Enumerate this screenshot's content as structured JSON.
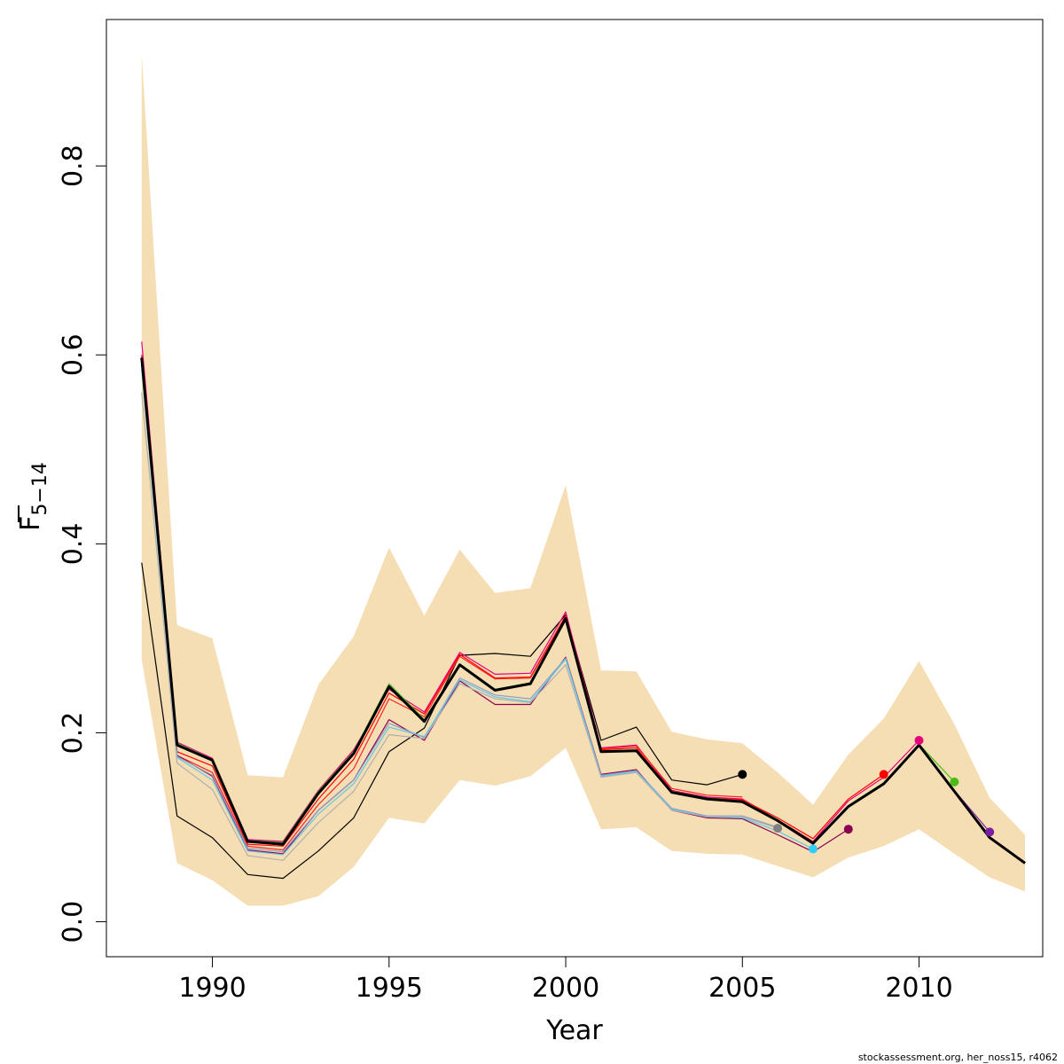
{
  "chart_data": {
    "type": "line",
    "xlabel": "Year",
    "ylabel_main": "F",
    "ylabel_sub": "5−14",
    "xlim": [
      1987,
      2013.5
    ],
    "ylim": [
      -0.037,
      0.955
    ],
    "xticks": [
      1990,
      1995,
      2000,
      2005,
      2010
    ],
    "yticks": [
      0.0,
      0.2,
      0.4,
      0.6,
      0.8
    ],
    "xtick_labels": [
      "1990",
      "1995",
      "2000",
      "2005",
      "2010"
    ],
    "ytick_labels": [
      "0.0",
      "0.2",
      "0.4",
      "0.6",
      "0.8"
    ],
    "band_color": "#f5deb3",
    "band": {
      "x": [
        1988,
        1989,
        1990,
        1991,
        1992,
        1993,
        1994,
        1995,
        1996,
        1997,
        1998,
        1999,
        2000,
        2001,
        2002,
        2003,
        2004,
        2005,
        2006,
        2007,
        2008,
        2009,
        2010,
        2011,
        2012,
        2013
      ],
      "upper": [
        0.918,
        0.314,
        0.3,
        0.155,
        0.153,
        0.251,
        0.302,
        0.396,
        0.324,
        0.394,
        0.348,
        0.353,
        0.462,
        0.266,
        0.265,
        0.201,
        0.193,
        0.189,
        0.158,
        0.124,
        0.177,
        0.215,
        0.276,
        0.209,
        0.131,
        0.092
      ],
      "lower": [
        0.277,
        0.062,
        0.044,
        0.017,
        0.017,
        0.027,
        0.058,
        0.11,
        0.104,
        0.15,
        0.144,
        0.154,
        0.184,
        0.098,
        0.1,
        0.075,
        0.072,
        0.071,
        0.059,
        0.047,
        0.068,
        0.08,
        0.098,
        0.072,
        0.047,
        0.032
      ]
    },
    "series": [
      {
        "color": "#000000",
        "width": 3,
        "x": [
          1988,
          1989,
          1990,
          1991,
          1992,
          1993,
          1994,
          1995,
          1996,
          1997,
          1998,
          1999,
          2000,
          2001,
          2002,
          2003,
          2004,
          2005,
          2006,
          2007,
          2008,
          2009,
          2010,
          2011,
          2012,
          2013
        ],
        "values": [
          0.597,
          0.187,
          0.171,
          0.085,
          0.082,
          0.136,
          0.178,
          0.249,
          0.212,
          0.272,
          0.245,
          0.252,
          0.321,
          0.18,
          0.181,
          0.137,
          0.13,
          0.127,
          0.107,
          0.083,
          0.122,
          0.146,
          0.187,
          0.138,
          0.089,
          0.062
        ]
      },
      {
        "color": "#000000",
        "width": 1.2,
        "x": [
          1988,
          1989,
          1990,
          1991,
          1992,
          1993,
          1994,
          1995,
          1996,
          1997,
          1998,
          1999,
          2000,
          2001,
          2002,
          2003,
          2004,
          2005
        ],
        "values": [
          0.38,
          0.112,
          0.089,
          0.05,
          0.046,
          0.075,
          0.11,
          0.18,
          0.205,
          0.282,
          0.284,
          0.281,
          0.325,
          0.192,
          0.206,
          0.15,
          0.145,
          0.156
        ]
      },
      {
        "color": "#e6007e",
        "width": 1.2,
        "x": [
          1988,
          1989,
          1990,
          1991,
          1992,
          1993,
          1994,
          1995,
          1996,
          1997,
          1998,
          1999,
          2000,
          2001,
          2002,
          2003,
          2004,
          2005,
          2006,
          2007,
          2008,
          2009,
          2010
        ],
        "values": [
          0.614,
          0.19,
          0.173,
          0.087,
          0.085,
          0.139,
          0.182,
          0.246,
          0.222,
          0.285,
          0.262,
          0.263,
          0.328,
          0.184,
          0.187,
          0.139,
          0.132,
          0.13,
          0.108,
          0.085,
          0.128,
          0.153,
          0.192
        ]
      },
      {
        "color": "#ff0000",
        "width": 1.2,
        "x": [
          1988,
          1989,
          1990,
          1991,
          1992,
          1993,
          1994,
          1995,
          1996,
          1997,
          1998,
          1999,
          2000,
          2001,
          2002,
          2003,
          2004,
          2005,
          2006,
          2007,
          2008,
          2009
        ],
        "values": [
          0.6,
          0.18,
          0.165,
          0.082,
          0.08,
          0.13,
          0.172,
          0.242,
          0.22,
          0.283,
          0.258,
          0.259,
          0.324,
          0.182,
          0.184,
          0.138,
          0.131,
          0.129,
          0.11,
          0.088,
          0.13,
          0.156
        ]
      },
      {
        "color": "#ff2020",
        "width": 1.2,
        "x": [
          1988,
          1989,
          1990,
          1991,
          1992,
          1993,
          1994,
          1995,
          1996,
          1997,
          1998,
          1999,
          2000,
          2001,
          2002,
          2003,
          2004,
          2005
        ],
        "values": [
          0.59,
          0.176,
          0.158,
          0.08,
          0.076,
          0.124,
          0.162,
          0.236,
          0.217,
          0.281,
          0.257,
          0.258,
          0.323,
          0.183,
          0.186,
          0.141,
          0.134,
          0.132
        ]
      },
      {
        "color": "#4cbb17",
        "width": 1.2,
        "x": [
          1988,
          1989,
          1990,
          1991,
          1992,
          1993,
          1994,
          1995,
          1996,
          1997,
          1998,
          1999,
          2000,
          2001,
          2002,
          2003,
          2004,
          2005,
          2006,
          2007,
          2008,
          2009,
          2010,
          2011
        ],
        "values": [
          0.597,
          0.189,
          0.172,
          0.086,
          0.084,
          0.138,
          0.18,
          0.252,
          0.214,
          0.273,
          0.246,
          0.253,
          0.322,
          0.181,
          0.182,
          0.138,
          0.131,
          0.128,
          0.108,
          0.084,
          0.123,
          0.147,
          0.188,
          0.148
        ]
      },
      {
        "color": "#7b1fa2",
        "width": 1.2,
        "x": [
          1988,
          1989,
          1990,
          1991,
          1992,
          1993,
          1994,
          1995,
          1996,
          1997,
          1998,
          1999,
          2000,
          2001,
          2002,
          2003,
          2004,
          2005,
          2006,
          2007,
          2008,
          2009,
          2010,
          2011,
          2012
        ],
        "values": [
          0.598,
          0.188,
          0.172,
          0.086,
          0.083,
          0.137,
          0.179,
          0.25,
          0.213,
          0.272,
          0.245,
          0.252,
          0.321,
          0.18,
          0.181,
          0.137,
          0.13,
          0.127,
          0.107,
          0.083,
          0.122,
          0.146,
          0.187,
          0.139,
          0.095
        ]
      },
      {
        "color": "#8b0051",
        "width": 1.2,
        "x": [
          1988,
          1989,
          1990,
          1991,
          1992,
          1993,
          1994,
          1995,
          1996,
          1997,
          1998,
          1999,
          2000,
          2001,
          2002,
          2003,
          2004,
          2005,
          2006,
          2007,
          2008
        ],
        "values": [
          0.59,
          0.176,
          0.154,
          0.076,
          0.072,
          0.118,
          0.15,
          0.214,
          0.192,
          0.255,
          0.23,
          0.23,
          0.28,
          0.156,
          0.161,
          0.118,
          0.11,
          0.109,
          0.092,
          0.074,
          0.098
        ]
      },
      {
        "color": "#8aa0c8",
        "width": 1.2,
        "x": [
          1988,
          1989,
          1990,
          1991,
          1992,
          1993,
          1994,
          1995,
          1996,
          1997,
          1998,
          1999,
          2000,
          2001,
          2002,
          2003,
          2004,
          2005,
          2006
        ],
        "values": [
          0.588,
          0.175,
          0.155,
          0.078,
          0.074,
          0.118,
          0.15,
          0.21,
          0.195,
          0.258,
          0.24,
          0.236,
          0.279,
          0.155,
          0.16,
          0.12,
          0.112,
          0.112,
          0.1
        ]
      },
      {
        "color": "#5fc8e8",
        "width": 1.2,
        "x": [
          1988,
          1989,
          1990,
          1991,
          1992,
          1993,
          1994,
          1995,
          1996,
          1997,
          1998,
          1999,
          2000,
          2001,
          2002,
          2003,
          2004,
          2005,
          2006,
          2007
        ],
        "values": [
          0.585,
          0.174,
          0.15,
          0.075,
          0.071,
          0.114,
          0.146,
          0.206,
          0.196,
          0.256,
          0.238,
          0.233,
          0.278,
          0.154,
          0.159,
          0.119,
          0.111,
          0.11,
          0.096,
          0.077
        ]
      },
      {
        "color": "#b0b0b0",
        "width": 1.2,
        "x": [
          1988,
          1989,
          1990,
          1991,
          1992,
          1993,
          1994,
          1995,
          1996,
          1997,
          1998,
          1999,
          2000,
          2001,
          2002,
          2003,
          2004,
          2005,
          2006
        ],
        "values": [
          0.56,
          0.168,
          0.14,
          0.07,
          0.065,
          0.105,
          0.138,
          0.198,
          0.194,
          0.252,
          0.236,
          0.232,
          0.272,
          0.153,
          0.158,
          0.118,
          0.111,
          0.111,
          0.099
        ]
      }
    ],
    "endpoints": [
      {
        "x": 2005,
        "y": 0.156,
        "color": "#000000"
      },
      {
        "x": 2006,
        "y": 0.099,
        "color": "#808080"
      },
      {
        "x": 2007,
        "y": 0.077,
        "color": "#33ccff"
      },
      {
        "x": 2008,
        "y": 0.098,
        "color": "#8b0051"
      },
      {
        "x": 2009,
        "y": 0.156,
        "color": "#ff0000"
      },
      {
        "x": 2010,
        "y": 0.192,
        "color": "#e6007e"
      },
      {
        "x": 2011,
        "y": 0.148,
        "color": "#4cbb17"
      },
      {
        "x": 2012,
        "y": 0.095,
        "color": "#7b1fa2"
      }
    ]
  },
  "credit": "stockassessment.org, her_noss15, r4062"
}
